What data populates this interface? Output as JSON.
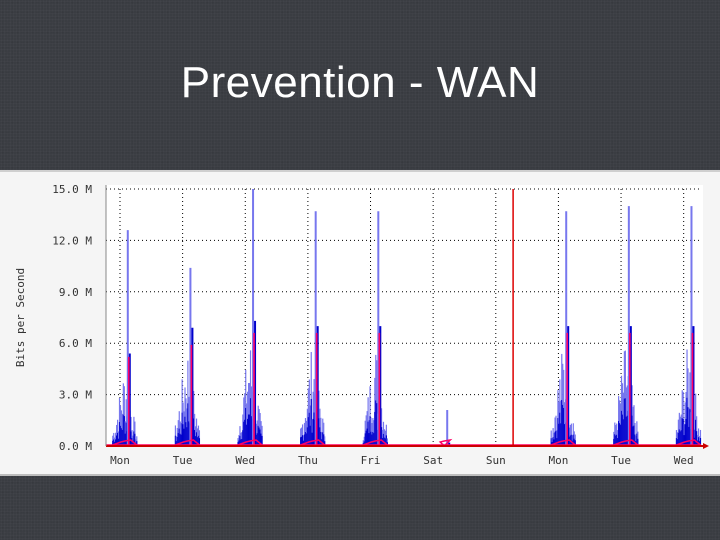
{
  "slide": {
    "title": "Prevention - WAN"
  },
  "chart_data": {
    "type": "area",
    "title": "",
    "xlabel": "",
    "ylabel": "Bits per Second",
    "ylim": [
      0,
      15.0
    ],
    "y_ticks": [
      "15.0 M",
      "12.0 M",
      "9.0 M",
      "6.0 M",
      "3.0 M",
      "0.0 M"
    ],
    "y_tick_values": [
      15,
      12,
      9,
      6,
      3,
      0
    ],
    "x_ticks": [
      "Mon",
      "Tue",
      "Wed",
      "Thu",
      "Fri",
      "Sat",
      "Sun",
      "Mon",
      "Tue",
      "Wed"
    ],
    "grid": true,
    "marker_x_day": 6.5,
    "colors": {
      "in_peak": "#7777ee",
      "in_avg": "#0000cc",
      "out": "#ff0066",
      "marker": "#dd0000",
      "axis": "#cc0000"
    },
    "series": [
      {
        "values": [
          {
            "day": 0.3,
            "peak": 12.6,
            "avg": 5.4,
            "out": 5.2
          },
          {
            "day": 1.3,
            "peak": 10.4,
            "avg": 6.9,
            "out": 5.9
          },
          {
            "day": 2.3,
            "peak": 15.0,
            "avg": 7.3,
            "out": 6.6
          },
          {
            "day": 3.3,
            "peak": 13.7,
            "avg": 7.0,
            "out": 6.6
          },
          {
            "day": 4.3,
            "peak": 13.7,
            "avg": 7.0,
            "out": 6.6
          },
          {
            "day": 5.4,
            "peak": 2.1,
            "avg": 0.2,
            "out": 0.1
          },
          {
            "day": 7.3,
            "peak": 13.7,
            "avg": 7.0,
            "out": 6.6
          },
          {
            "day": 8.3,
            "peak": 14.0,
            "avg": 7.0,
            "out": 6.6
          },
          {
            "day": 9.3,
            "peak": 14.0,
            "avg": 7.0,
            "out": 6.6
          }
        ]
      }
    ]
  }
}
